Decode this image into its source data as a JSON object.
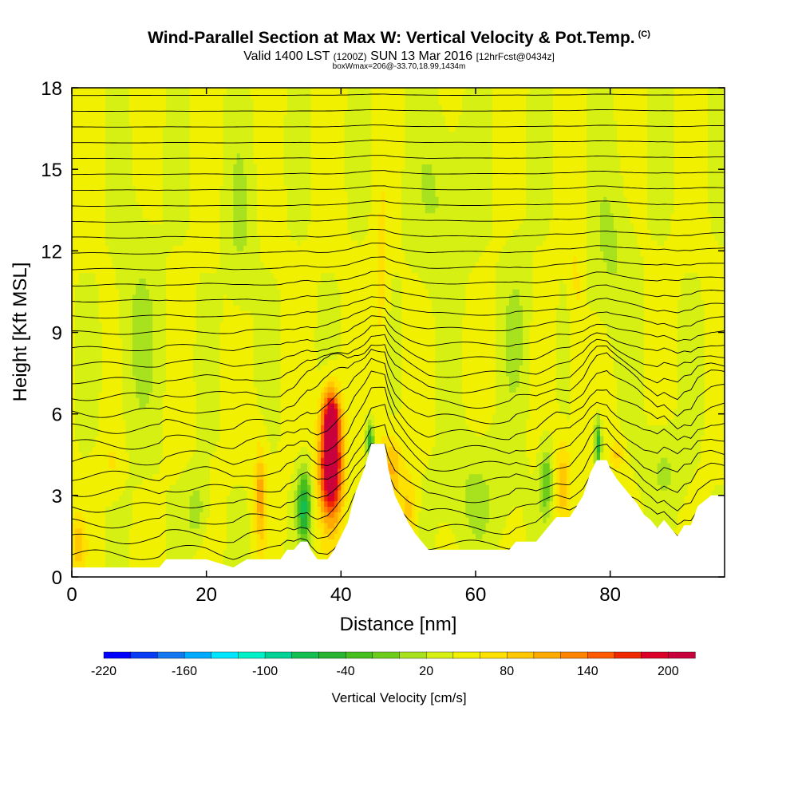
{
  "header": {
    "title": "Wind-Parallel Section at Max W: Vertical Velocity & Pot.Temp.",
    "copyright": "(C)",
    "valid_prefix": "Valid 1400 LST",
    "valid_utc": "(1200Z)",
    "valid_date": "SUN 13 Mar 2016",
    "forecast": "[12hrFcst@0434z]",
    "box_info": "boxWmax=206@-33.70,18.99,1434m"
  },
  "colors": {
    "background_field": "#a8e11e",
    "field_dark": "#6ecd1a",
    "terrain": "#ffffff",
    "contour": "#000000"
  },
  "colorbar": {
    "title": "Vertical Velocity [cm/s]",
    "tick_labels": [
      "-220",
      "-160",
      "-100",
      "-40",
      "20",
      "80",
      "140",
      "200"
    ],
    "colors": [
      "#0000ff",
      "#0a3cf5",
      "#1478f0",
      "#00aaff",
      "#00e6ff",
      "#00f0c8",
      "#00d296",
      "#14be50",
      "#28b432",
      "#46be1e",
      "#6ecd1a",
      "#a8e11e",
      "#d7f014",
      "#f0f000",
      "#ffe100",
      "#ffc800",
      "#ffaa00",
      "#ff8200",
      "#ff5a00",
      "#f02800",
      "#dc0028",
      "#c8003c"
    ]
  },
  "chart_data": {
    "type": "heatmap",
    "xlabel": "Distance [nm]",
    "ylabel": "Height [Kft MSL]",
    "xlim": [
      0,
      97
    ],
    "ylim": [
      0,
      18
    ],
    "x_ticks": [
      0,
      20,
      40,
      60,
      80
    ],
    "y_ticks": [
      0,
      3,
      6,
      9,
      12,
      15,
      18
    ],
    "terrain_profile": [
      {
        "x": 0,
        "h": 0.35
      },
      {
        "x": 5,
        "h": 0.35
      },
      {
        "x": 13,
        "h": 0.35
      },
      {
        "x": 14,
        "h": 0.65
      },
      {
        "x": 20,
        "h": 0.65
      },
      {
        "x": 24,
        "h": 0.35
      },
      {
        "x": 26,
        "h": 0.65
      },
      {
        "x": 31,
        "h": 0.65
      },
      {
        "x": 32,
        "h": 1.0
      },
      {
        "x": 33,
        "h": 1.0
      },
      {
        "x": 34,
        "h": 1.3
      },
      {
        "x": 35,
        "h": 1.3
      },
      {
        "x": 35.5,
        "h": 1.0
      },
      {
        "x": 36.5,
        "h": 0.65
      },
      {
        "x": 38,
        "h": 0.65
      },
      {
        "x": 39,
        "h": 1.0
      },
      {
        "x": 40,
        "h": 1.5
      },
      {
        "x": 41,
        "h": 2.0
      },
      {
        "x": 42,
        "h": 3.0
      },
      {
        "x": 43.5,
        "h": 4.0
      },
      {
        "x": 44.5,
        "h": 4.9
      },
      {
        "x": 46.5,
        "h": 4.9
      },
      {
        "x": 47,
        "h": 4.0
      },
      {
        "x": 48,
        "h": 3.0
      },
      {
        "x": 49,
        "h": 2.5
      },
      {
        "x": 50,
        "h": 2.0
      },
      {
        "x": 51,
        "h": 1.6
      },
      {
        "x": 52,
        "h": 1.3
      },
      {
        "x": 53,
        "h": 1.0
      },
      {
        "x": 60,
        "h": 1.0
      },
      {
        "x": 65,
        "h": 1.0
      },
      {
        "x": 66,
        "h": 1.3
      },
      {
        "x": 69,
        "h": 1.3
      },
      {
        "x": 70,
        "h": 1.6
      },
      {
        "x": 71,
        "h": 1.9
      },
      {
        "x": 72,
        "h": 2.2
      },
      {
        "x": 74,
        "h": 2.2
      },
      {
        "x": 75,
        "h": 2.6
      },
      {
        "x": 76,
        "h": 3.0
      },
      {
        "x": 77,
        "h": 3.8
      },
      {
        "x": 78,
        "h": 4.3
      },
      {
        "x": 79.5,
        "h": 4.3
      },
      {
        "x": 80,
        "h": 4.0
      },
      {
        "x": 81,
        "h": 3.6
      },
      {
        "x": 82,
        "h": 3.3
      },
      {
        "x": 83,
        "h": 3.0
      },
      {
        "x": 84,
        "h": 2.7
      },
      {
        "x": 85,
        "h": 2.3
      },
      {
        "x": 86,
        "h": 2.1
      },
      {
        "x": 87,
        "h": 1.8
      },
      {
        "x": 88,
        "h": 2.1
      },
      {
        "x": 89,
        "h": 1.8
      },
      {
        "x": 90,
        "h": 1.5
      },
      {
        "x": 91,
        "h": 1.9
      },
      {
        "x": 92,
        "h": 1.9
      },
      {
        "x": 93,
        "h": 2.6
      },
      {
        "x": 95,
        "h": 3.0
      },
      {
        "x": 97,
        "h": 3.0
      }
    ],
    "wind_features": [
      {
        "x": 38.5,
        "y": 4.2,
        "sx": 1.6,
        "sy": 2.0,
        "w": 220
      },
      {
        "x": 38.5,
        "y": 6.0,
        "sx": 1.2,
        "sy": 0.9,
        "w": 110
      },
      {
        "x": 34.5,
        "y": 2.6,
        "sx": 1.0,
        "sy": 1.3,
        "w": -110
      },
      {
        "x": 44.3,
        "y": 5.0,
        "sx": 0.6,
        "sy": 0.7,
        "w": -90
      },
      {
        "x": 28.0,
        "y": 3.0,
        "sx": 0.8,
        "sy": 1.8,
        "w": 70
      },
      {
        "x": 18.5,
        "y": 2.5,
        "sx": 1.5,
        "sy": 1.2,
        "w": -35
      },
      {
        "x": 47.5,
        "y": 4.0,
        "sx": 1.5,
        "sy": 1.2,
        "w": 60
      },
      {
        "x": 50.0,
        "y": 2.5,
        "sx": 1.2,
        "sy": 1.3,
        "w": 45
      },
      {
        "x": 70.5,
        "y": 3.5,
        "sx": 0.9,
        "sy": 1.3,
        "w": -60
      },
      {
        "x": 73.0,
        "y": 3.5,
        "sx": 1.0,
        "sy": 1.5,
        "w": 55
      },
      {
        "x": 78.2,
        "y": 4.9,
        "sx": 0.5,
        "sy": 0.9,
        "w": -100
      },
      {
        "x": 81.0,
        "y": 4.5,
        "sx": 1.0,
        "sy": 0.6,
        "w": 45
      },
      {
        "x": 6.0,
        "y": 4.2,
        "sx": 1.5,
        "sy": 1.0,
        "w": 20
      },
      {
        "x": 1.0,
        "y": 1.2,
        "sx": 1.0,
        "sy": 1.2,
        "w": 45
      },
      {
        "x": 60.0,
        "y": 3.0,
        "sx": 5.0,
        "sy": 2.0,
        "w": -25
      },
      {
        "x": 88.0,
        "y": 4.0,
        "sx": 3.0,
        "sy": 1.5,
        "w": -25
      },
      {
        "x": 10.0,
        "y": 9.0,
        "sx": 3.0,
        "sy": 4.0,
        "w": -25
      },
      {
        "x": 25.0,
        "y": 13.0,
        "sx": 2.0,
        "sy": 3.0,
        "w": -25
      },
      {
        "x": 55.0,
        "y": 14.0,
        "sx": 4.0,
        "sy": 3.0,
        "w": -25
      },
      {
        "x": 80.0,
        "y": 12.0,
        "sx": 3.0,
        "sy": 3.0,
        "w": -25
      },
      {
        "x": 66.0,
        "y": 9.0,
        "sx": 2.0,
        "sy": 3.0,
        "w": -25
      },
      {
        "x": 46.0,
        "y": 10.0,
        "sx": 1.0,
        "sy": 5.0,
        "w": 25
      },
      {
        "x": 75.0,
        "y": 10.0,
        "sx": 1.0,
        "sy": 4.0,
        "w": 25
      }
    ],
    "theta_contour_levels": 30
  }
}
